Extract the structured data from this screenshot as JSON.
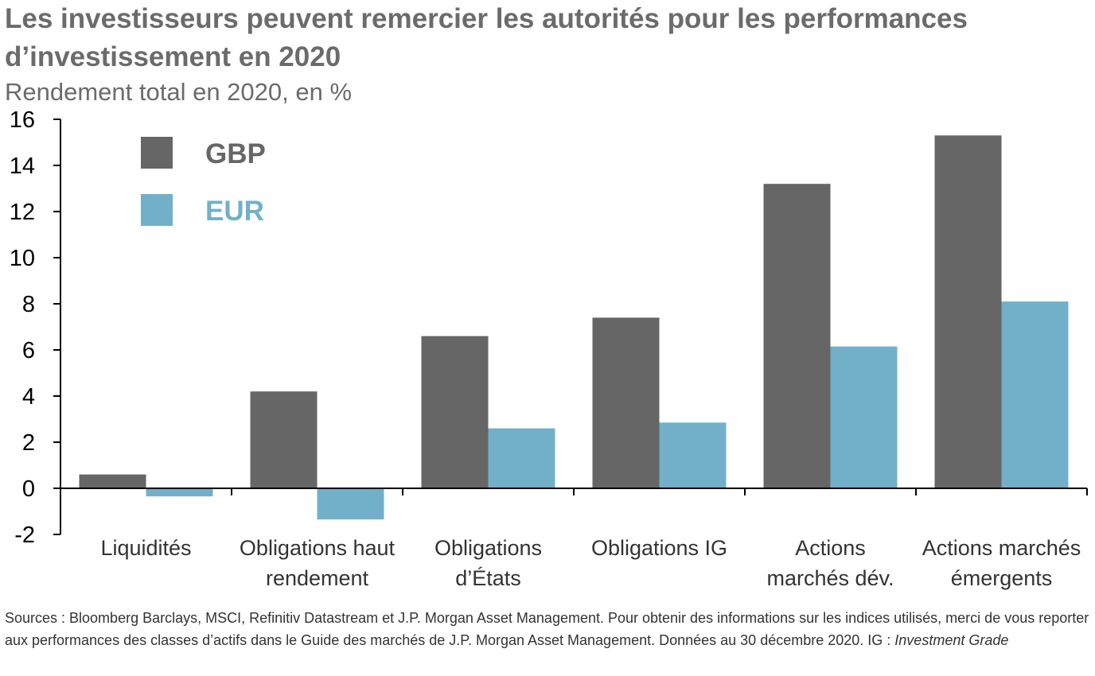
{
  "title": "Les investisseurs peuvent remercier les autorités pour les performances d’investissement en 2020",
  "subtitle": "Rendement total en 2020, en %",
  "source": {
    "text": "Sources : Bloomberg Barclays, MSCI, Refinitiv Datastream et J.P. Morgan Asset Management. Pour obtenir des informations sur les indices utilisés, merci de vous reporter aux performances des classes d’actifs dans le Guide des marchés de J.P. Morgan Asset Management. Données au 30 décembre 2020. IG : ",
    "italic": "Investment Grade"
  },
  "chart_data": {
    "type": "bar",
    "categories": [
      [
        "Liquidités"
      ],
      [
        "Obligations haut",
        "rendement"
      ],
      [
        "Obligations",
        "d’États"
      ],
      [
        "Obligations IG"
      ],
      [
        "Actions",
        "marchés dév."
      ],
      [
        "Actions marchés",
        "émergents"
      ]
    ],
    "series": [
      {
        "name": "GBP",
        "color": "#666666",
        "values": [
          0.6,
          4.2,
          6.6,
          7.4,
          13.2,
          15.3
        ]
      },
      {
        "name": "EUR",
        "color": "#72B0CA",
        "values": [
          -0.35,
          -1.35,
          2.6,
          2.85,
          6.15,
          8.1
        ]
      }
    ],
    "ylim": [
      -2,
      16
    ],
    "yticks": [
      -2,
      0,
      2,
      4,
      6,
      8,
      10,
      12,
      14,
      16
    ],
    "legend_position": "top-left",
    "grid": false
  }
}
